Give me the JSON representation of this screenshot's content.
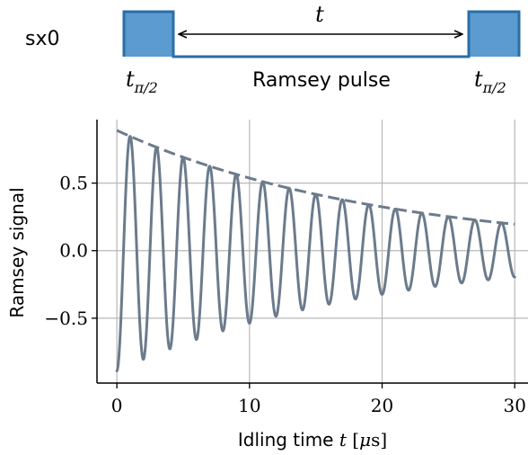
{
  "pulse_diagram": {
    "channel_label": "sx0",
    "interval_label": "t",
    "left_pulse_label_base": "t",
    "left_pulse_label_sub": "π/2",
    "right_pulse_label_base": "t",
    "right_pulse_label_sub": "π/2",
    "center_label": "Ramsey pulse",
    "pulse_color": "#5b9bd0",
    "line_color": "#2a6ea8"
  },
  "chart_data": {
    "type": "line",
    "xlabel_prefix": "Idling time ",
    "xlabel_var": "t",
    "xlabel_unit_open": " [",
    "xlabel_unit_mu": "μ",
    "xlabel_unit_rest": "s]",
    "ylabel": "Ramsey signal",
    "xlim": [
      -1.5,
      31.0
    ],
    "ylim": [
      -0.98,
      0.97
    ],
    "xticks": [
      0,
      10,
      20,
      30
    ],
    "xtick_labels": [
      "0",
      "10",
      "20",
      "30"
    ],
    "yticks": [
      -0.5,
      0.0,
      0.5
    ],
    "ytick_labels": [
      "−0.5",
      "0.0",
      "0.5"
    ],
    "grid": true,
    "series": [
      {
        "style": "solid",
        "color": "#6b7b8c",
        "function": "A*exp(-t/tau)*(-cos(2*pi*f*t))",
        "amplitude": 0.89,
        "decay_time": 19.8,
        "frequency": 0.5,
        "x_range": [
          0,
          30
        ]
      },
      {
        "style": "dashed",
        "color": "#6b7b8c",
        "function": "A*exp(-t/tau)",
        "amplitude": 0.89,
        "decay_time": 19.8,
        "x_range": [
          0,
          30
        ]
      }
    ]
  }
}
